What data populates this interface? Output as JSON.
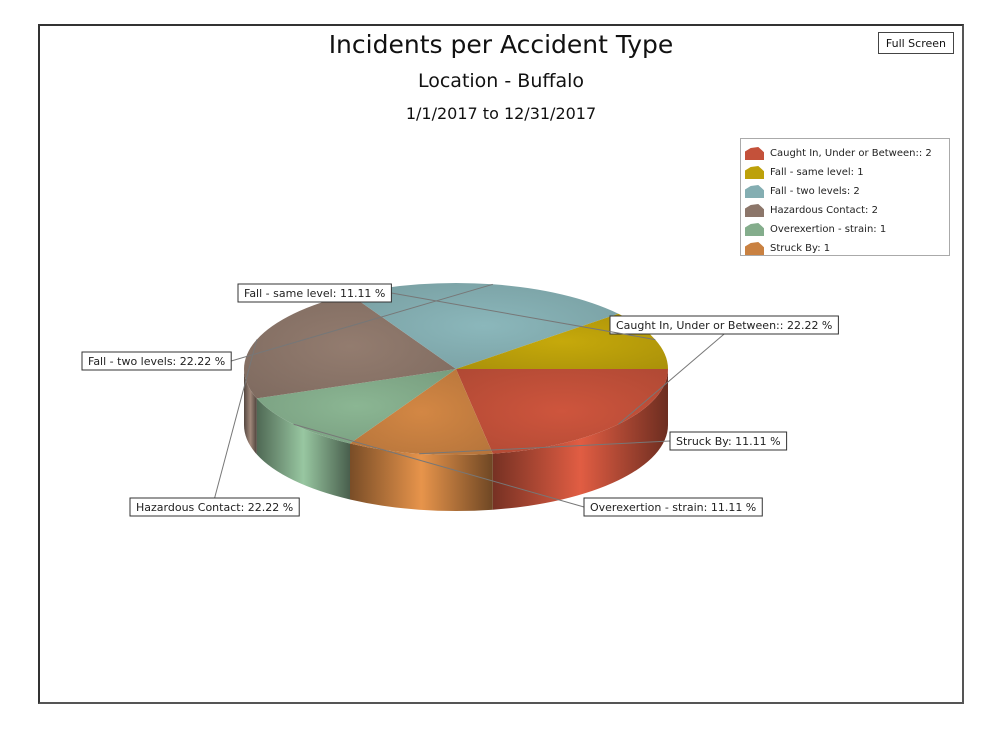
{
  "toolbar": {
    "fullscreen_label": "Full Screen"
  },
  "colors": {
    "Caught In, Under or Between:": "#c4513a",
    "Fall - same level": "#bda10a",
    "Fall - two levels": "#84aeb2",
    "Hazardous Contact": "#8c766a",
    "Overexertion - strain": "#84ad8c",
    "Struck By": "#c98141"
  },
  "chart_data": {
    "type": "pie",
    "title": "Incidents per Accident Type",
    "subtitle": "Location - Buffalo",
    "date_range": "1/1/2017 to 12/31/2017",
    "legend_position": "top-right",
    "slices": [
      {
        "name": "Caught In, Under or Between:",
        "value": 2,
        "percent": 22.22,
        "legend_text": "Caught In, Under or Between:: 2",
        "label_text": "Caught In, Under or Between:: 22.22 %"
      },
      {
        "name": "Struck By",
        "value": 1,
        "percent": 11.11,
        "legend_text": "Struck By: 1",
        "label_text": "Struck By: 11.11 %"
      },
      {
        "name": "Overexertion - strain",
        "value": 1,
        "percent": 11.11,
        "legend_text": "Overexertion - strain: 1",
        "label_text": "Overexertion - strain: 11.11 %"
      },
      {
        "name": "Hazardous Contact",
        "value": 2,
        "percent": 22.22,
        "legend_text": "Hazardous Contact: 2",
        "label_text": "Hazardous Contact: 22.22 %"
      },
      {
        "name": "Fall - two levels",
        "value": 2,
        "percent": 22.22,
        "legend_text": "Fall - two levels: 2",
        "label_text": "Fall - two levels: 22.22 %"
      },
      {
        "name": "Fall - same level",
        "value": 1,
        "percent": 11.11,
        "legend_text": "Fall - same level: 1",
        "label_text": "Fall - same level: 11.11 %"
      }
    ],
    "legend_order": [
      "Caught In, Under or Between:",
      "Fall - same level",
      "Fall - two levels",
      "Hazardous Contact",
      "Overexertion - strain",
      "Struck By"
    ]
  }
}
